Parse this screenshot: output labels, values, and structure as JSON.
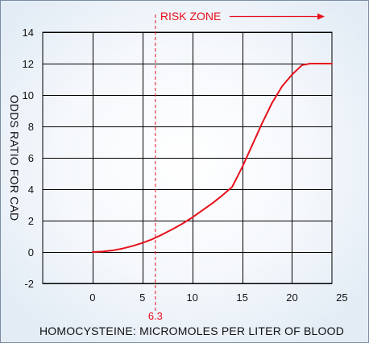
{
  "chart_data": {
    "type": "line",
    "title": "",
    "xlabel": "HOMOCYSTEINE: MICROMOLES PER LITER OF BLOOD",
    "ylabel": "ODDS RATIO FOR CAD",
    "xlim": [
      -5,
      24
    ],
    "ylim": [
      -2,
      14
    ],
    "x_ticks": [
      0,
      5,
      10,
      15,
      20,
      25
    ],
    "y_ticks": [
      -2,
      0,
      2,
      4,
      6,
      8,
      10,
      12,
      14
    ],
    "grid": true,
    "series": [
      {
        "x": [
          0,
          1,
          2,
          3,
          4,
          5,
          6,
          7,
          8,
          9,
          10,
          11,
          12,
          13,
          14,
          15,
          16,
          17,
          18,
          19,
          20,
          21,
          21.8,
          24
        ],
        "y": [
          0,
          0.03,
          0.1,
          0.22,
          0.38,
          0.58,
          0.82,
          1.12,
          1.45,
          1.8,
          2.2,
          2.65,
          3.1,
          3.6,
          4.15,
          5.4,
          6.8,
          8.2,
          9.5,
          10.55,
          11.3,
          11.9,
          12,
          12
        ]
      }
    ],
    "threshold": {
      "x": 6.3,
      "label": "6.3"
    },
    "annotation": {
      "text": "RISK ZONE",
      "from_x": 6.3,
      "to_x": 24
    },
    "colors": {
      "background": "#eaf1f8",
      "background_highlight": "#ffffff",
      "border": "#7a8ca3",
      "grid": "#000000",
      "line": "#e8101c",
      "text": "#111111"
    }
  }
}
